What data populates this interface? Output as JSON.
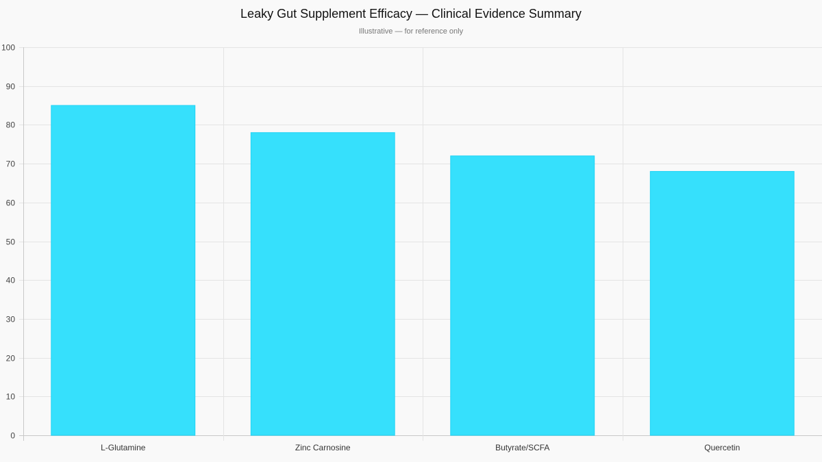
{
  "chart_data": {
    "type": "bar",
    "title": "Leaky Gut Supplement Efficacy — Clinical Evidence Summary",
    "subtitle": "Illustrative — for reference only",
    "categories": [
      "L-Glutamine",
      "Zinc Carnosine",
      "Butyrate/SCFA",
      "Quercetin"
    ],
    "values": [
      85,
      78,
      72,
      68
    ],
    "xlabel": "",
    "ylabel": "",
    "ylim": [
      0,
      100
    ],
    "yticks": [
      0,
      10,
      20,
      30,
      40,
      50,
      60,
      70,
      80,
      90,
      100
    ],
    "grid": true,
    "legend": "none",
    "colors": {
      "bar_fill": "#36e0fc",
      "bar_border": "#1fd3f5",
      "grid": "#e4e4e4",
      "axis": "#c8c8c8",
      "background": "#f9f9f9"
    }
  }
}
